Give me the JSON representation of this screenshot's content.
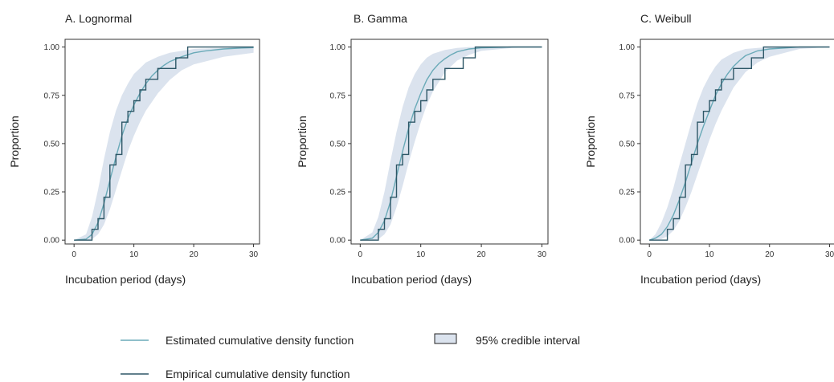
{
  "chart_data": [
    {
      "type": "line",
      "title": "A. Lognormal",
      "xlabel": "Incubation period (days)",
      "ylabel": "Proportion",
      "xlim": [
        -1.5,
        31
      ],
      "ylim": [
        -0.02,
        1.04
      ],
      "xticks": [
        0,
        10,
        20,
        30
      ],
      "xtick_labels": [
        "0",
        "10",
        "20",
        "30"
      ],
      "yticks": [
        0,
        0.25,
        0.5,
        0.75,
        1
      ],
      "ytick_labels": [
        "0.00",
        "0.25",
        "0.50",
        "0.75",
        "1.00"
      ],
      "grid": false,
      "series": [
        {
          "name": "Estimated cumulative density function",
          "x": [
            0,
            2,
            3,
            4,
            5,
            6,
            7,
            8,
            9,
            10,
            11,
            12,
            13,
            14,
            15,
            16,
            18,
            20,
            22,
            25,
            28,
            30
          ],
          "y": [
            0,
            0.005,
            0.03,
            0.09,
            0.19,
            0.31,
            0.43,
            0.54,
            0.63,
            0.7,
            0.76,
            0.81,
            0.85,
            0.88,
            0.905,
            0.925,
            0.95,
            0.97,
            0.98,
            0.99,
            0.995,
            0.997
          ]
        },
        {
          "name": "Empirical cumulative density function",
          "x": [
            0,
            3,
            4,
            5,
            6,
            7,
            8,
            9,
            10,
            11,
            12,
            14,
            17,
            19,
            30
          ],
          "y": [
            0,
            0.056,
            0.111,
            0.222,
            0.389,
            0.444,
            0.611,
            0.667,
            0.722,
            0.778,
            0.833,
            0.889,
            0.944,
            1.0,
            1.0
          ]
        }
      ],
      "interval": {
        "name": "95% credible interval",
        "x": [
          0,
          2,
          3,
          4,
          5,
          6,
          7,
          8,
          9,
          10,
          11,
          12,
          14,
          16,
          18,
          20,
          25,
          30
        ],
        "lower": [
          0,
          0,
          0.005,
          0.03,
          0.08,
          0.16,
          0.26,
          0.36,
          0.46,
          0.54,
          0.61,
          0.67,
          0.76,
          0.83,
          0.88,
          0.91,
          0.95,
          0.97
        ],
        "upper": [
          0,
          0.03,
          0.12,
          0.26,
          0.42,
          0.56,
          0.67,
          0.75,
          0.81,
          0.86,
          0.89,
          0.92,
          0.95,
          0.97,
          0.98,
          0.99,
          0.995,
          1.0
        ]
      }
    },
    {
      "type": "line",
      "title": "B. Gamma",
      "xlabel": "Incubation period (days)",
      "ylabel": "Proportion",
      "xlim": [
        -1.5,
        31
      ],
      "ylim": [
        -0.02,
        1.04
      ],
      "xticks": [
        0,
        10,
        20,
        30
      ],
      "xtick_labels": [
        "0",
        "10",
        "20",
        "30"
      ],
      "yticks": [
        0,
        0.25,
        0.5,
        0.75,
        1
      ],
      "ytick_labels": [
        "0.00",
        "0.25",
        "0.50",
        "0.75",
        "1.00"
      ],
      "grid": false,
      "series": [
        {
          "name": "Estimated cumulative density function",
          "x": [
            0,
            2,
            3,
            4,
            5,
            6,
            7,
            8,
            9,
            10,
            11,
            12,
            13,
            14,
            15,
            16,
            18,
            20,
            25,
            30
          ],
          "y": [
            0,
            0.01,
            0.04,
            0.1,
            0.2,
            0.33,
            0.46,
            0.58,
            0.68,
            0.76,
            0.83,
            0.88,
            0.915,
            0.94,
            0.96,
            0.975,
            0.99,
            0.996,
            1.0,
            1.0
          ]
        },
        {
          "name": "Empirical cumulative density function",
          "x": [
            0,
            3,
            4,
            5,
            6,
            7,
            8,
            9,
            10,
            11,
            12,
            14,
            17,
            19,
            30
          ],
          "y": [
            0,
            0.056,
            0.111,
            0.222,
            0.389,
            0.444,
            0.611,
            0.667,
            0.722,
            0.778,
            0.833,
            0.889,
            0.944,
            1.0,
            1.0
          ]
        }
      ],
      "interval": {
        "name": "95% credible interval",
        "x": [
          0,
          2,
          3,
          4,
          5,
          6,
          7,
          8,
          9,
          10,
          11,
          12,
          14,
          16,
          18,
          20,
          25,
          30
        ],
        "lower": [
          0,
          0,
          0.005,
          0.03,
          0.08,
          0.17,
          0.28,
          0.4,
          0.51,
          0.61,
          0.7,
          0.77,
          0.87,
          0.93,
          0.96,
          0.98,
          0.995,
          1.0
        ],
        "upper": [
          0,
          0.04,
          0.12,
          0.25,
          0.41,
          0.56,
          0.69,
          0.79,
          0.86,
          0.91,
          0.945,
          0.965,
          0.985,
          0.995,
          1.0,
          1.0,
          1.0,
          1.0
        ]
      }
    },
    {
      "type": "line",
      "title": "C. Weibull",
      "xlabel": "Incubation period (days)",
      "ylabel": "Proportion",
      "xlim": [
        -1.5,
        31
      ],
      "ylim": [
        -0.02,
        1.04
      ],
      "xticks": [
        0,
        10,
        20,
        30
      ],
      "xtick_labels": [
        "0",
        "10",
        "20",
        "30"
      ],
      "yticks": [
        0,
        0.25,
        0.5,
        0.75,
        1
      ],
      "ytick_labels": [
        "0.00",
        "0.25",
        "0.50",
        "0.75",
        "1.00"
      ],
      "grid": false,
      "series": [
        {
          "name": "Estimated cumulative density function",
          "x": [
            0,
            1,
            2,
            3,
            4,
            5,
            6,
            7,
            8,
            9,
            10,
            11,
            12,
            13,
            14,
            15,
            16,
            18,
            20,
            25,
            30
          ],
          "y": [
            0,
            0.01,
            0.03,
            0.07,
            0.13,
            0.21,
            0.3,
            0.4,
            0.5,
            0.59,
            0.67,
            0.75,
            0.81,
            0.86,
            0.9,
            0.93,
            0.955,
            0.98,
            0.99,
            1.0,
            1.0
          ]
        },
        {
          "name": "Empirical cumulative density function",
          "x": [
            0,
            3,
            4,
            5,
            6,
            7,
            8,
            9,
            10,
            11,
            12,
            14,
            17,
            19,
            30
          ],
          "y": [
            0,
            0.056,
            0.111,
            0.222,
            0.389,
            0.444,
            0.611,
            0.667,
            0.722,
            0.778,
            0.833,
            0.889,
            0.944,
            1.0,
            1.0
          ]
        }
      ],
      "interval": {
        "name": "95% credible interval",
        "x": [
          0,
          1,
          2,
          3,
          4,
          5,
          6,
          7,
          8,
          9,
          10,
          11,
          12,
          14,
          16,
          18,
          20,
          25,
          30
        ],
        "lower": [
          0,
          0,
          0.005,
          0.02,
          0.05,
          0.1,
          0.17,
          0.25,
          0.34,
          0.43,
          0.52,
          0.6,
          0.67,
          0.79,
          0.87,
          0.92,
          0.95,
          0.99,
          1.0
        ],
        "upper": [
          0,
          0.03,
          0.09,
          0.17,
          0.27,
          0.39,
          0.5,
          0.61,
          0.71,
          0.79,
          0.85,
          0.9,
          0.935,
          0.97,
          0.99,
          0.995,
          1.0,
          1.0,
          1.0
        ]
      }
    }
  ],
  "legend": {
    "items": [
      {
        "label": "Estimated cumulative density function",
        "kind": "line",
        "color": "#6aaab8"
      },
      {
        "label": "95% credible interval",
        "kind": "box",
        "color": "#dbe3ee"
      },
      {
        "label": "Empirical cumulative density function",
        "kind": "line",
        "color": "#2e5767"
      }
    ]
  },
  "colors": {
    "estimated": "#6aaab8",
    "empirical": "#2e5767",
    "interval_fill": "#dbe3ee",
    "axis": "#333333"
  }
}
